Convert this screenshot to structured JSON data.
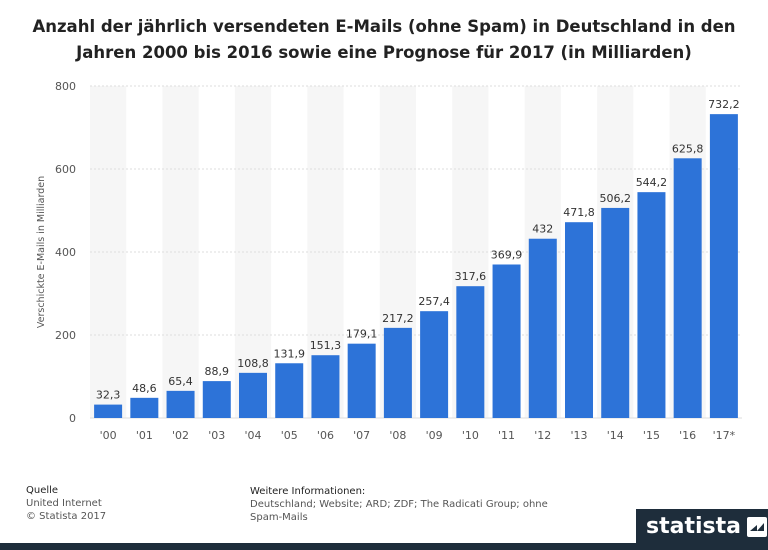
{
  "title": "Anzahl der jährlich versendeten E-Mails (ohne Spam) in Deutschland in den Jahren 2000 bis 2016 sowie eine Prognose für 2017 (in Milliarden)",
  "chart_data": {
    "type": "bar",
    "categories": [
      "'00",
      "'01",
      "'02",
      "'03",
      "'04",
      "'05",
      "'06",
      "'07",
      "'08",
      "'09",
      "'10",
      "'11",
      "'12",
      "'13",
      "'14",
      "'15",
      "'16",
      "'17*"
    ],
    "values": [
      32.3,
      48.6,
      65.4,
      88.9,
      108.8,
      131.9,
      151.3,
      179.1,
      217.2,
      257.4,
      317.6,
      369.9,
      432,
      471.8,
      506.2,
      544.2,
      625.8,
      732.2
    ],
    "value_labels": [
      "32,3",
      "48,6",
      "65,4",
      "88,9",
      "108,8",
      "131,9",
      "151,3",
      "179,1",
      "217,2",
      "257,4",
      "317,6",
      "369,9",
      "432",
      "471,8",
      "506,2",
      "544,2",
      "625,8",
      "732,2"
    ],
    "ylabel": "Verschickte E-Mails in Milliarden",
    "ylim": [
      0,
      800
    ],
    "yticks": [
      0,
      200,
      400,
      600,
      800
    ],
    "grid": true,
    "bar_color": "#2d73d8"
  },
  "footer": {
    "source_head": "Quelle",
    "source_line1": "United Internet",
    "source_line2": "© Statista 2017",
    "info_head": "Weitere Informationen:",
    "info_line1": "Deutschland; Website; ARD; ZDF; The Radicati Group; ohne",
    "info_line2": "Spam-Mails"
  },
  "logo": {
    "text": "statista",
    "icon": "statista-logo-icon"
  }
}
